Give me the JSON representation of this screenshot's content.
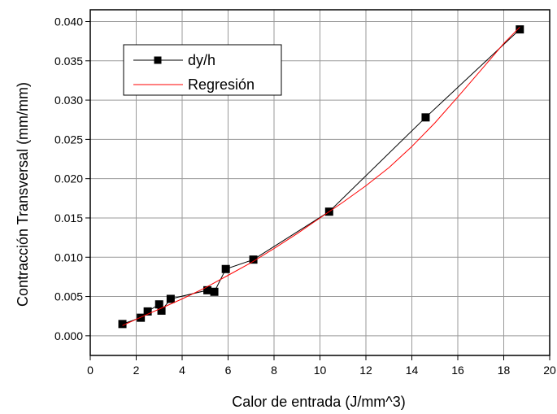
{
  "chart_data": {
    "type": "line",
    "xlabel": "Calor de entrada (J/mm^3)",
    "ylabel": "Contracción Transversal (mm/mm)",
    "xlim": [
      0,
      20
    ],
    "ylim": [
      -0.0025,
      0.0415
    ],
    "x_ticks": [
      0,
      2,
      4,
      6,
      8,
      10,
      12,
      14,
      16,
      18,
      20
    ],
    "x_tick_labels": [
      "0",
      "2",
      "4",
      "6",
      "8",
      "10",
      "12",
      "14",
      "16",
      "18",
      "20"
    ],
    "y_ticks": [
      0.0,
      0.005,
      0.01,
      0.015,
      0.02,
      0.025,
      0.03,
      0.035,
      0.04
    ],
    "y_tick_labels": [
      "0.000",
      "0.005",
      "0.010",
      "0.015",
      "0.020",
      "0.025",
      "0.030",
      "0.035",
      "0.040"
    ],
    "grid": true,
    "legend_position": "top-left",
    "series": [
      {
        "name": "dy/h",
        "color": "#000000",
        "marker": "square",
        "x": [
          1.4,
          2.2,
          2.5,
          3.0,
          3.1,
          3.5,
          5.1,
          5.4,
          5.9,
          7.1,
          10.4,
          14.6,
          18.7
        ],
        "y": [
          0.0015,
          0.0023,
          0.0031,
          0.004,
          0.0032,
          0.0047,
          0.0058,
          0.0056,
          0.0085,
          0.0097,
          0.0158,
          0.0278,
          0.039
        ]
      },
      {
        "name": "Regresión",
        "color": "#ff0000",
        "marker": "none",
        "x": [
          1.4,
          2.0,
          3.0,
          4.0,
          5.0,
          6.0,
          7.0,
          8.0,
          9.0,
          10.0,
          11.0,
          12.0,
          13.0,
          14.0,
          15.0,
          16.0,
          17.0,
          18.0,
          18.7
        ],
        "y": [
          0.0013,
          0.0021,
          0.0034,
          0.0047,
          0.0061,
          0.0077,
          0.0093,
          0.0111,
          0.013,
          0.015,
          0.017,
          0.0191,
          0.0214,
          0.0241,
          0.0271,
          0.0304,
          0.0338,
          0.0372,
          0.0393
        ]
      }
    ]
  }
}
